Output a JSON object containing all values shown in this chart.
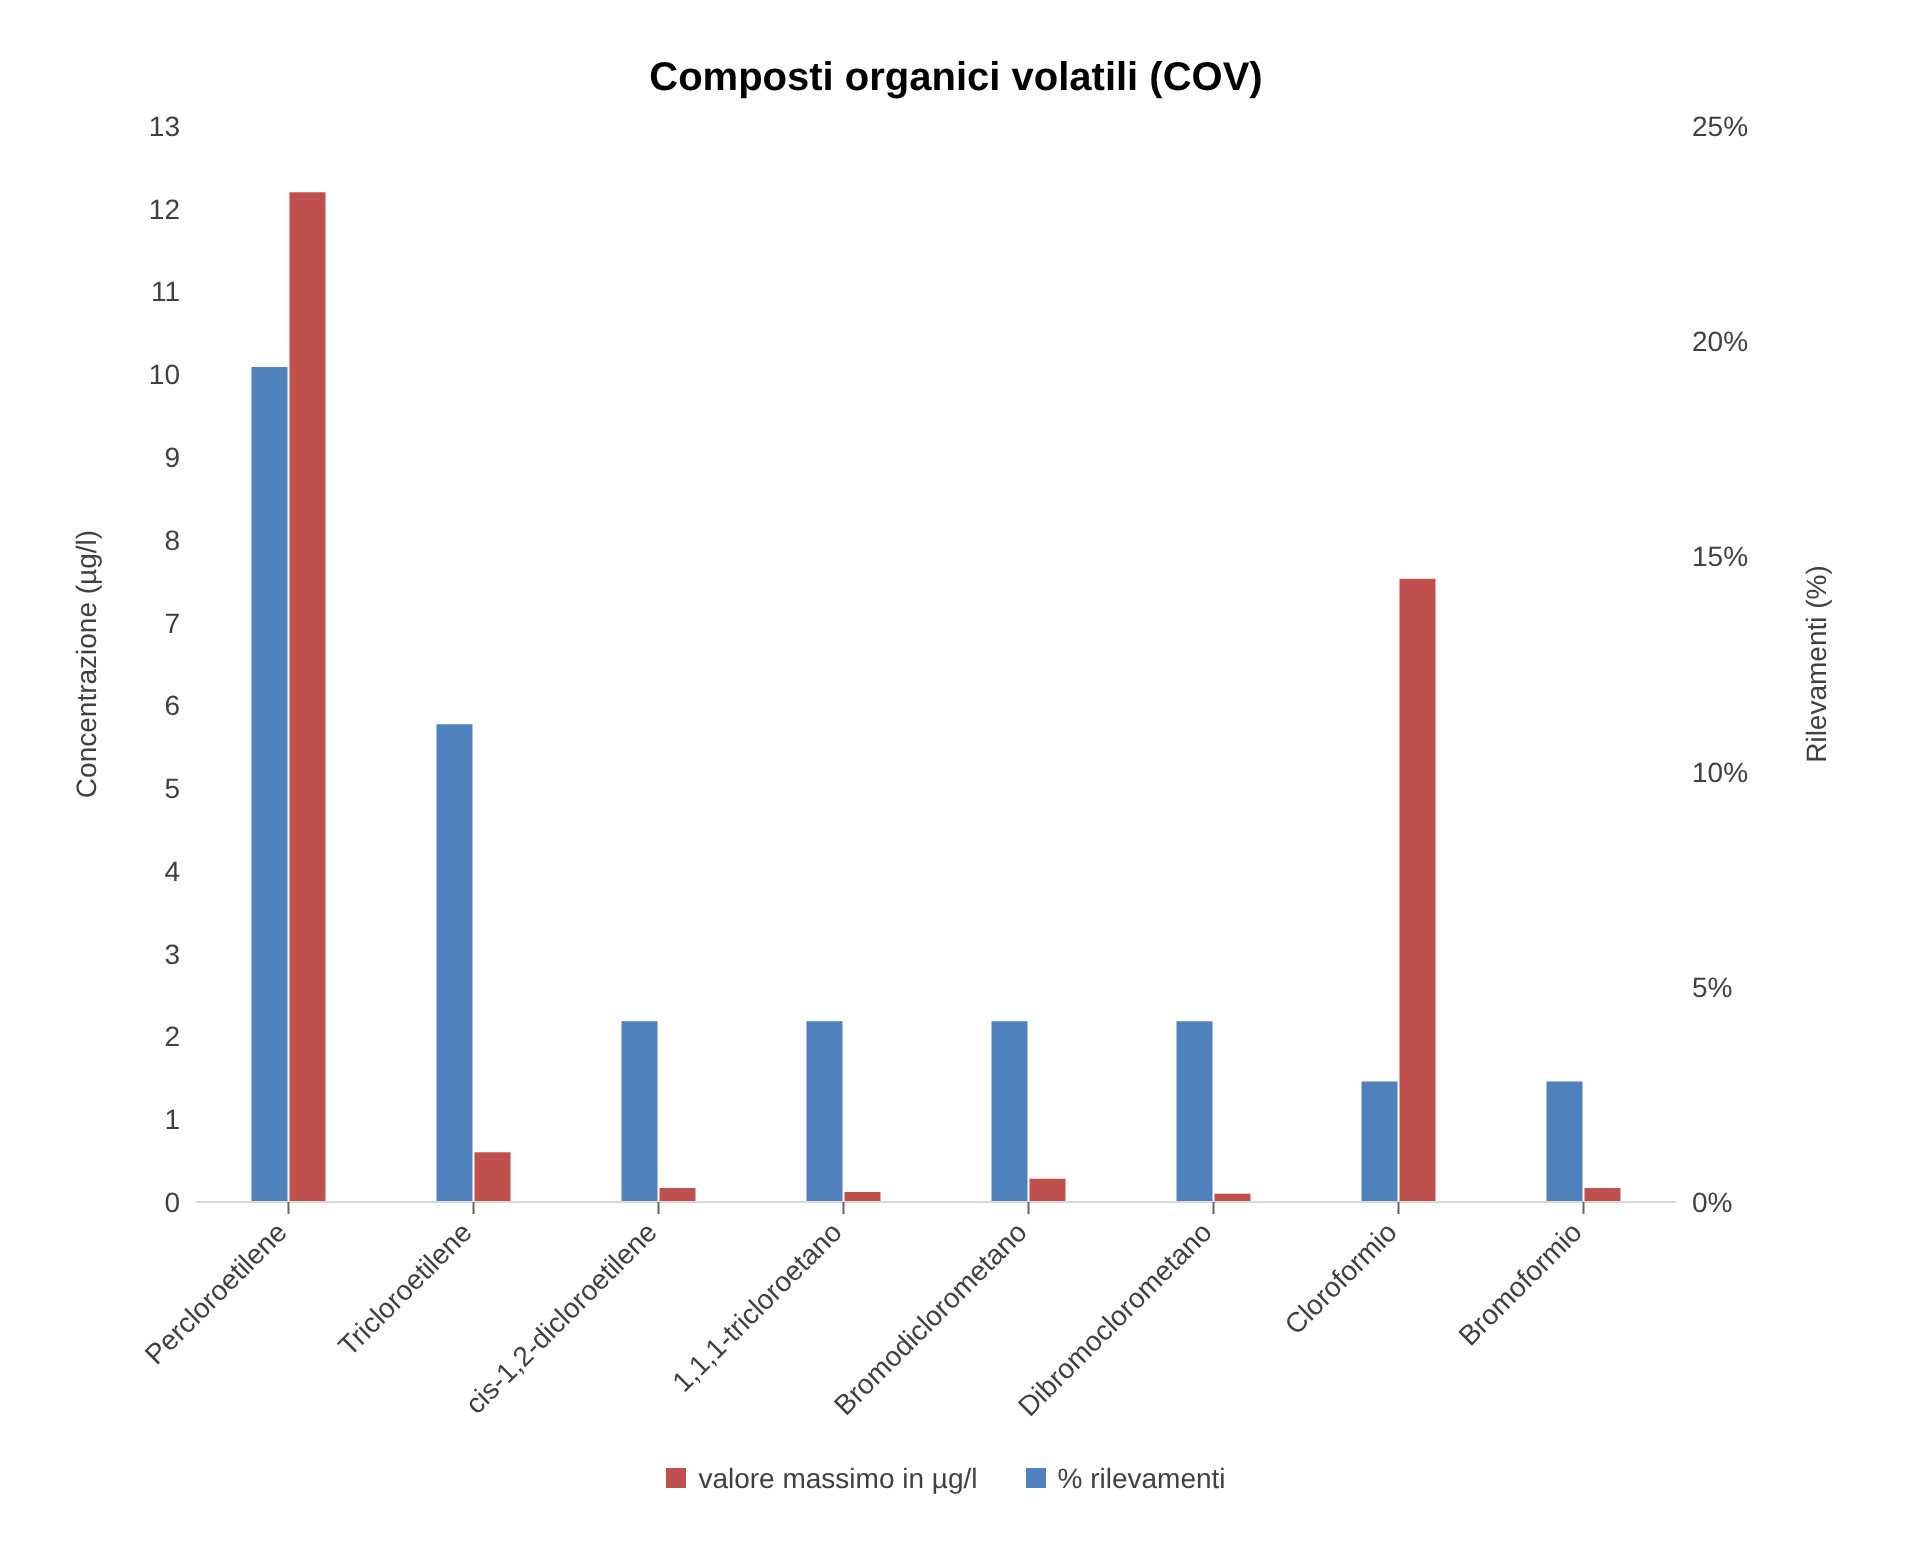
{
  "chart_data": {
    "type": "bar",
    "title": "Composti organici volatili (COV)",
    "ylabel": "Concentrazione (µg/l)",
    "y2label": "Rilevamenti (%)",
    "categories": [
      "Percloroetilene",
      "Tricloroetilene",
      "cis-1,2-dicloroetilene",
      "1,1,1-tricloroetano",
      "Bromodiclorometano",
      "Dibromoclorometano",
      "Cloroformio",
      "Bromoformio"
    ],
    "series": [
      {
        "name": "valore massimo in µg/l",
        "color": "#c0504d",
        "values": [
          12.2,
          0.6,
          0.17,
          0.12,
          0.28,
          0.1,
          7.53,
          0.17
        ]
      },
      {
        "name": "% rilevamenti",
        "color": "#4f81bd",
        "axis": "y2",
        "values": [
          19.4,
          11.1,
          4.2,
          4.2,
          4.2,
          4.2,
          2.8,
          2.8
        ]
      }
    ],
    "ylim": [
      0,
      13
    ],
    "yticks": [
      0,
      1,
      2,
      3,
      4,
      5,
      6,
      7,
      8,
      9,
      10,
      11,
      12,
      13
    ],
    "y2lim": [
      0,
      25
    ],
    "y2ticks": [
      {
        "value": 0,
        "label": "0%"
      },
      {
        "value": 5,
        "label": "5%"
      },
      {
        "value": 10,
        "label": "10%"
      },
      {
        "value": 15,
        "label": "15%"
      },
      {
        "value": 20,
        "label": "20%"
      },
      {
        "value": 25,
        "label": "25%"
      }
    ],
    "grid": false,
    "legend": "bottom"
  }
}
